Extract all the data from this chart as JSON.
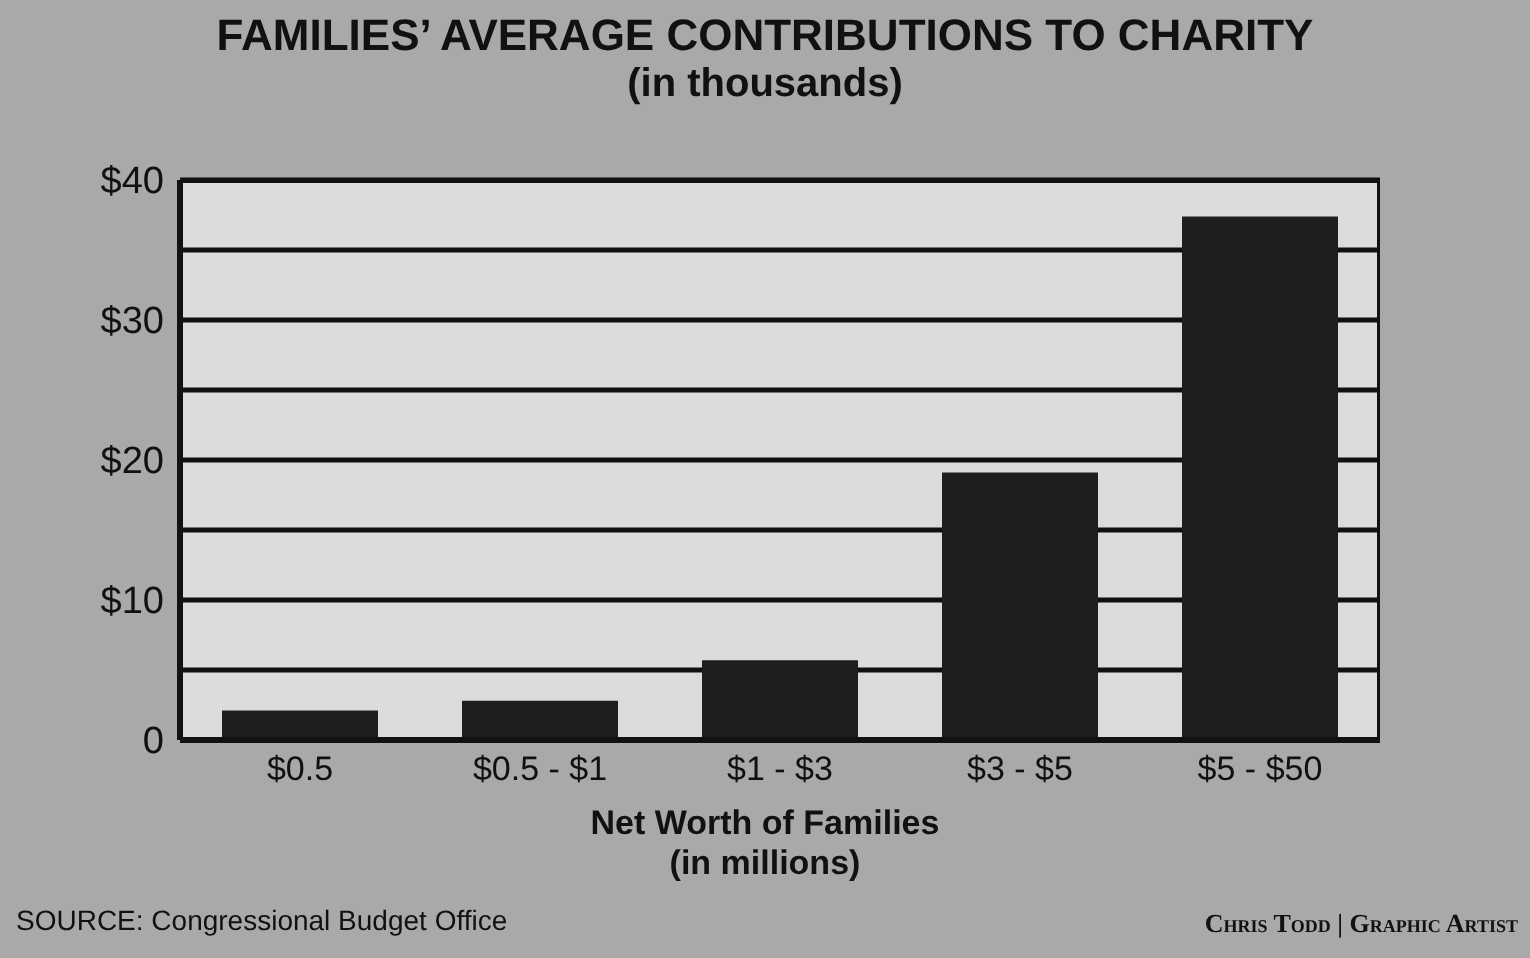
{
  "chart_data": {
    "type": "bar",
    "title": "FAMILIES’ AVERAGE CONTRIBUTIONS TO CHARITY",
    "subtitle": "(in thousands)",
    "xlabel": "Net Worth of Families\n(in millions)",
    "categories": [
      "$0.5",
      "$0.5 - $1",
      "$1 - $3",
      "$3 - $5",
      "$5 - $50"
    ],
    "values": [
      2.1,
      2.8,
      5.7,
      19.1,
      37.4
    ],
    "color": "#1e1e1e",
    "ylim": [
      0,
      40
    ],
    "yticks": [
      {
        "value": 0,
        "label": "0"
      },
      {
        "value": 5,
        "label": null
      },
      {
        "value": 10,
        "label": "$10"
      },
      {
        "value": 15,
        "label": null
      },
      {
        "value": 20,
        "label": "$20"
      },
      {
        "value": 25,
        "label": null
      },
      {
        "value": 30,
        "label": "$30"
      },
      {
        "value": 35,
        "label": null
      },
      {
        "value": 40,
        "label": "$40"
      }
    ],
    "grid": "y",
    "annotations": [
      "SOURCE: Congressional Budget Office",
      "Chris Todd | Graphic Artist"
    ]
  }
}
